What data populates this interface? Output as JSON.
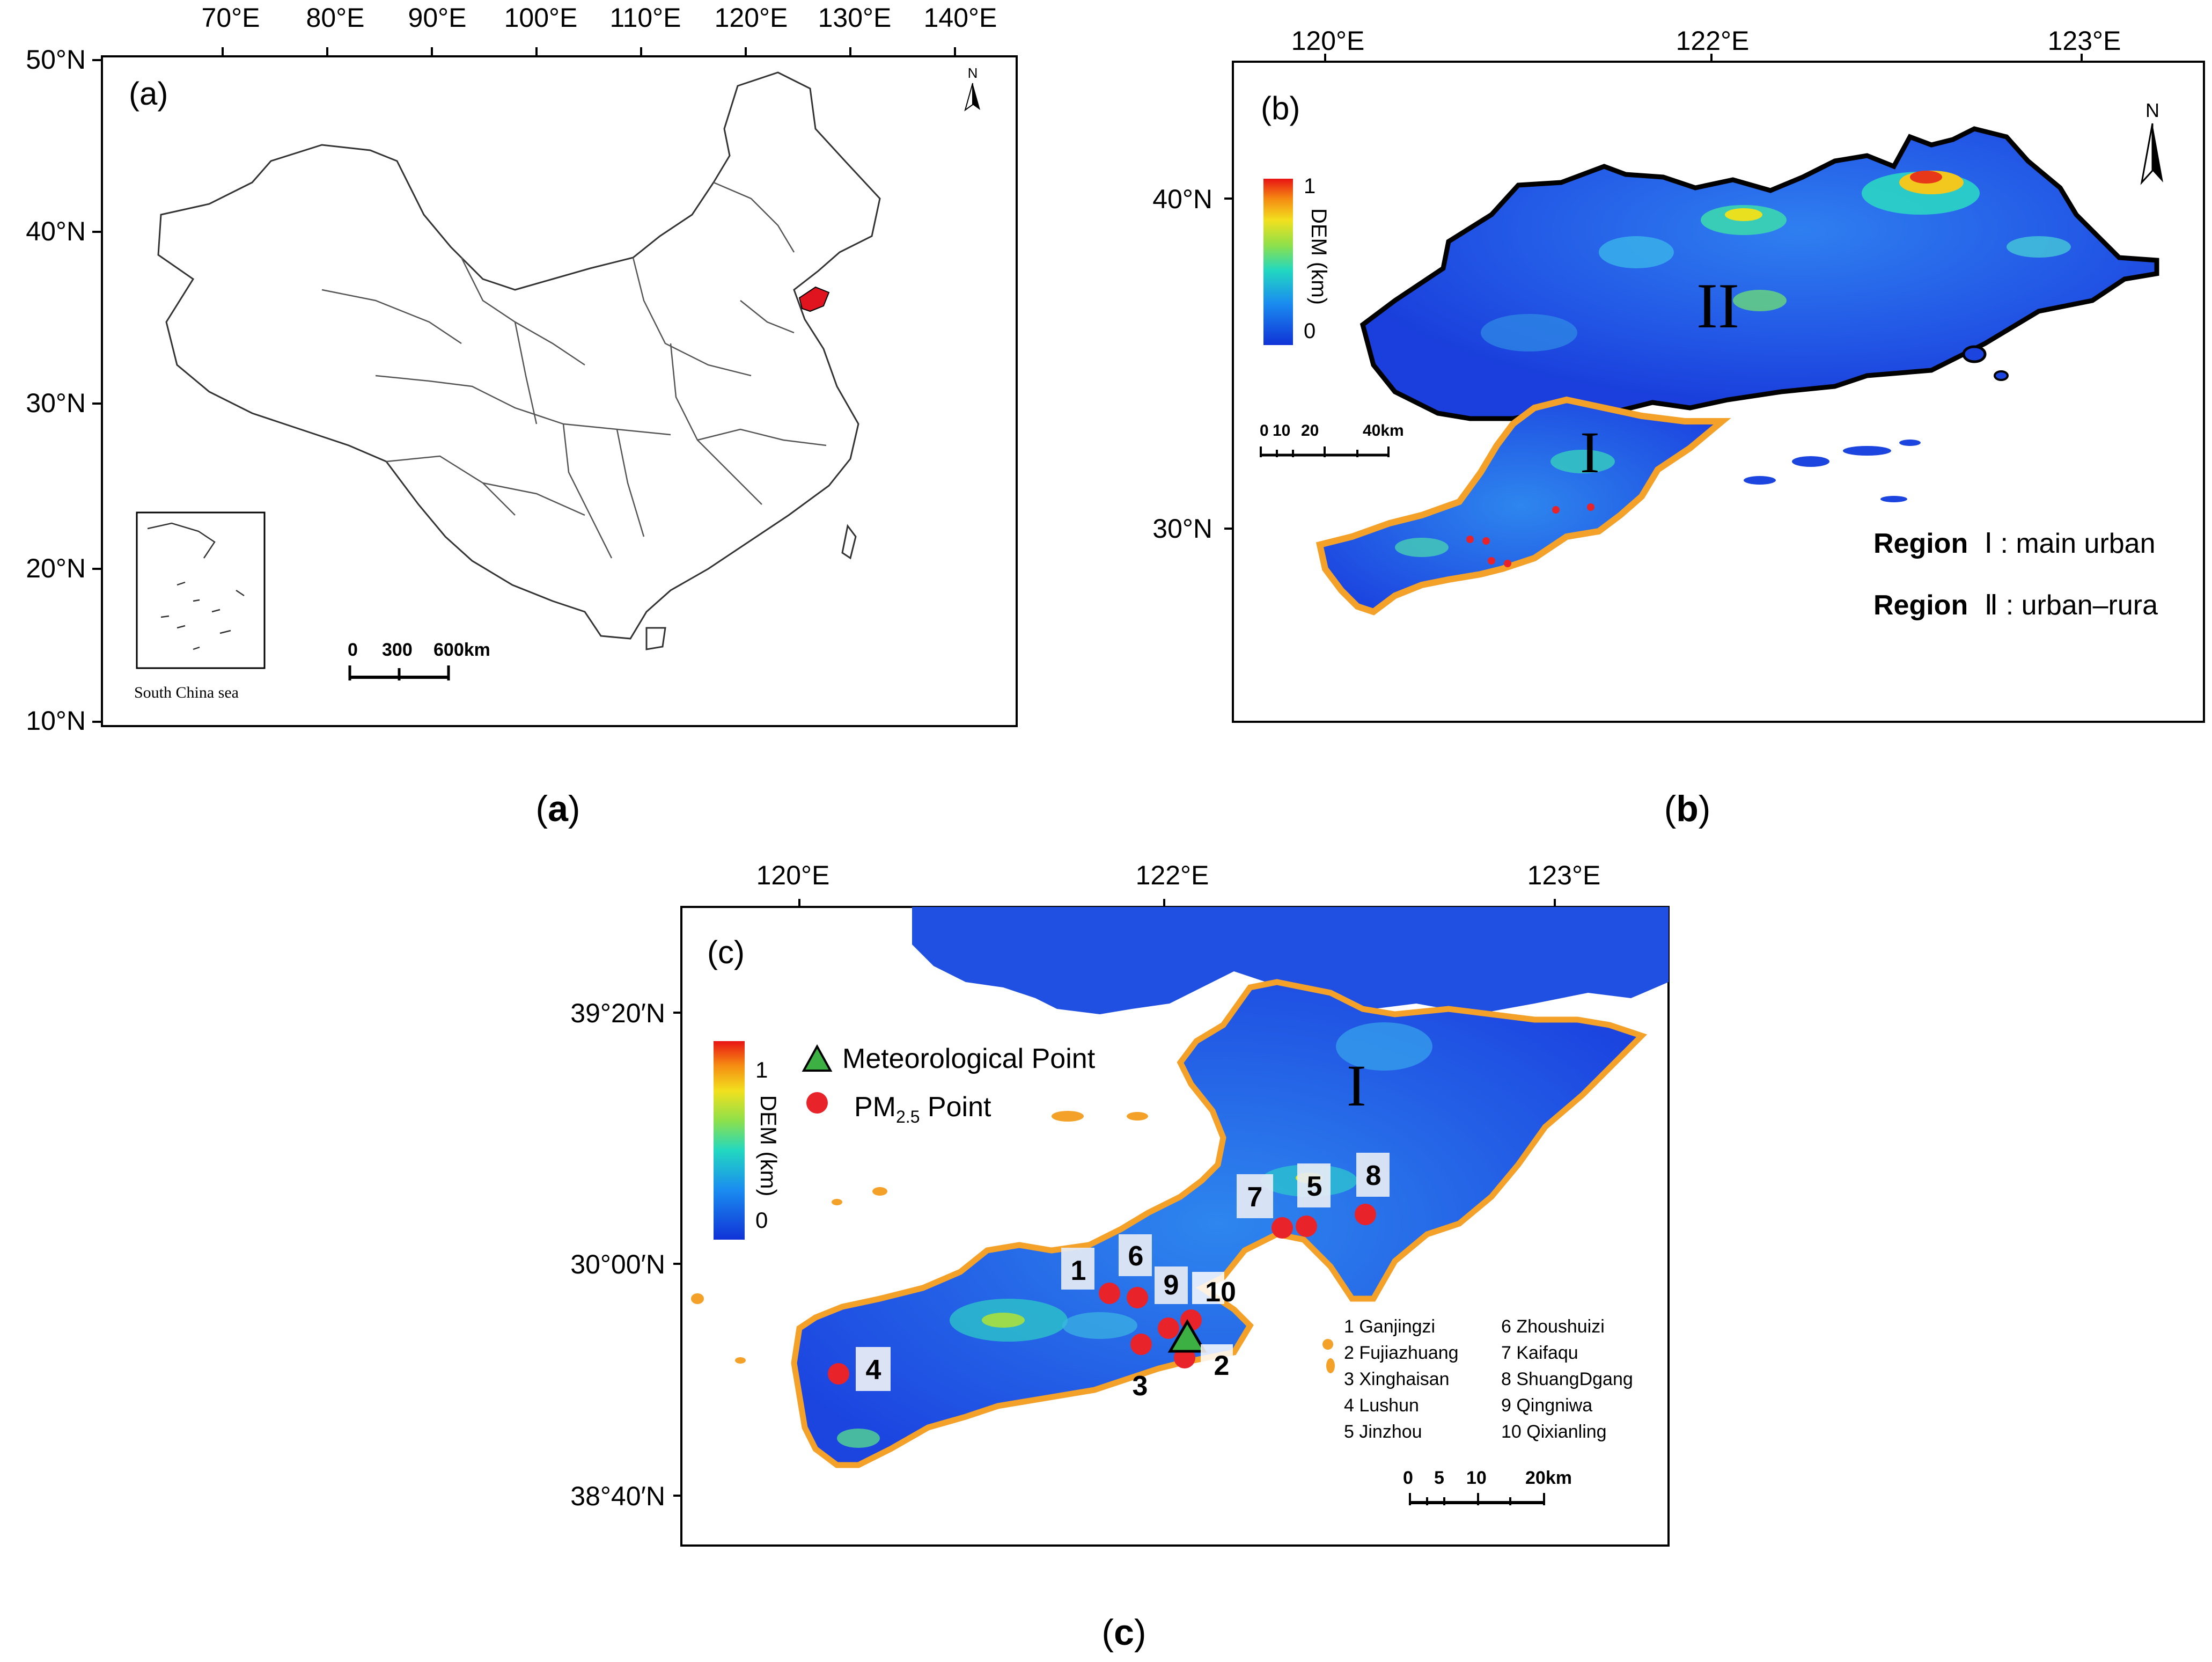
{
  "panel_a": {
    "label": "(a)",
    "lon_ticks": [
      "70°E",
      "80°E",
      "90°E",
      "100°E",
      "110°E",
      "120°E",
      "130°E",
      "140°E"
    ],
    "lat_ticks": [
      "50°N",
      "40°N",
      "30°N",
      "20°N",
      "10°N"
    ],
    "north": "N",
    "inset_label": "South China sea",
    "scale": [
      "0",
      "300",
      "600km"
    ],
    "highlight_color": "#e0141e"
  },
  "panel_b": {
    "label": "(b)",
    "lon_ticks": [
      "120°E",
      "122°E",
      "123°E"
    ],
    "lat_ticks": [
      "40°N",
      "30°N"
    ],
    "north": "N",
    "colorbar": {
      "max": "1",
      "min": "0",
      "title": "DEM (km)"
    },
    "scale": [
      "0",
      "10",
      "20",
      "40km"
    ],
    "region_marks": [
      "I",
      "II"
    ],
    "legend": [
      {
        "bold": "Region",
        "numeral": "Ⅰ",
        "text": ": main urban"
      },
      {
        "bold": "Region",
        "numeral": "Ⅱ",
        "text": ": urban–rura"
      }
    ],
    "boundary_colors": {
      "region1": "#f4a12a",
      "region2": "#000000"
    }
  },
  "panel_c": {
    "label": "(c)",
    "lon_ticks": [
      "120°E",
      "122°E",
      "123°E"
    ],
    "lat_ticks": [
      "39°20′N",
      "30°00′N",
      "38°40′N"
    ],
    "colorbar": {
      "max": "1",
      "min": "0",
      "title": "DEM (km)"
    },
    "legend_met": "Meteorological Point",
    "legend_pm_prefix": "PM",
    "legend_pm_sub": "2.5",
    "legend_pm_suffix": " Point",
    "region_mark": "I",
    "stations": [
      {
        "n": "1",
        "name": "Ganjingzi"
      },
      {
        "n": "2",
        "name": "Fujiazhuang"
      },
      {
        "n": "3",
        "name": "Xinghaisan"
      },
      {
        "n": "4",
        "name": "Lushun"
      },
      {
        "n": "5",
        "name": "Jinzhou"
      },
      {
        "n": "6",
        "name": "Zhoushuizi"
      },
      {
        "n": "7",
        "name": "Kaifaqu"
      },
      {
        "n": "8",
        "name": "ShuangDgang"
      },
      {
        "n": "9",
        "name": "Qingniwa"
      },
      {
        "n": "10",
        "name": "Qixianling"
      }
    ],
    "station_list": [
      "1 Ganjingzi",
      "2 Fujiazhuang",
      "3 Xinghaisan",
      "4 Lushun",
      "5 Jinzhou",
      "6 Zhoushuizi",
      "7 Kaifaqu",
      "8 ShuangDgang",
      "9 Qingniwa",
      "10 Qixianling"
    ],
    "scale": [
      "0",
      "5",
      "10",
      "20km"
    ],
    "point_color": "#e8232a",
    "met_color": "#3cb043"
  },
  "captions": {
    "a": "a",
    "b": "b",
    "c": "c"
  }
}
